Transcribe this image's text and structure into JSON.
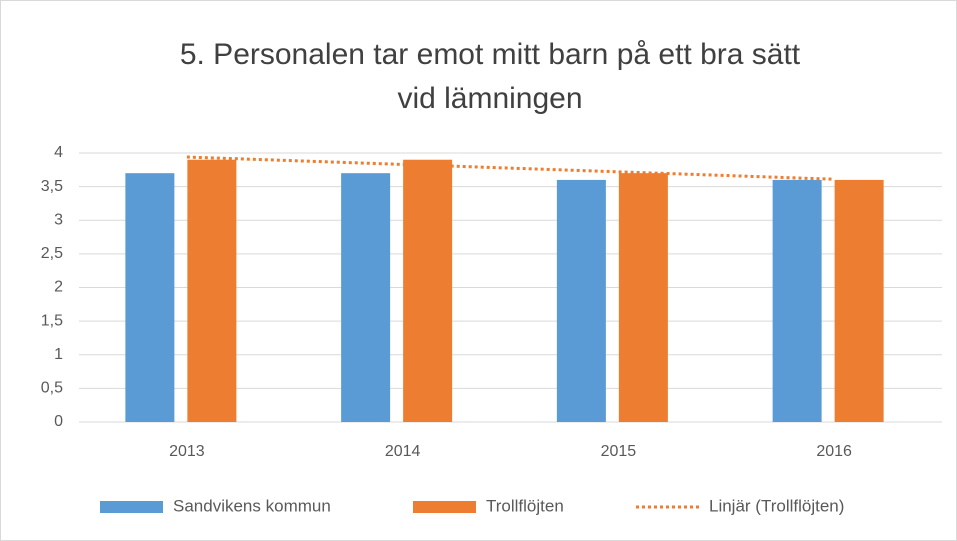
{
  "chart_data": {
    "type": "bar",
    "title": [
      "5. Personalen tar emot mitt barn på ett bra sätt",
      "vid lämningen"
    ],
    "categories": [
      "2013",
      "2014",
      "2015",
      "2016"
    ],
    "series": [
      {
        "name": "Sandvikens kommun",
        "color": "#5b9bd5",
        "values": [
          3.7,
          3.7,
          3.6,
          3.6
        ]
      },
      {
        "name": "Trollflöjten",
        "color": "#ed7d31",
        "values": [
          3.9,
          3.9,
          3.7,
          3.6
        ]
      },
      {
        "name": "Linjär (Trollflöjten)",
        "color": "#ed7d31",
        "type": "trendline",
        "values": [
          3.94,
          3.83,
          3.72,
          3.61
        ]
      }
    ],
    "ylim": [
      0,
      4
    ],
    "yticks": [
      0,
      {
        "value": 0.5,
        "label": "0,5"
      },
      1,
      {
        "value": 1.5,
        "label": "1,5"
      },
      2,
      {
        "value": 2.5,
        "label": "2,5"
      },
      3,
      {
        "value": 3.5,
        "label": "3,5"
      },
      4
    ],
    "grid": true,
    "legend": "bottom"
  }
}
